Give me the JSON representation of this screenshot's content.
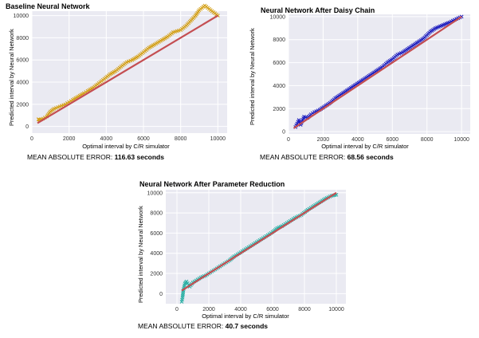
{
  "chart_data": [
    {
      "type": "scatter",
      "title": "Baseline Neural Network",
      "xlabel": "Optimal interval by C/R simulator",
      "ylabel": "Predicted interval by Neural Network",
      "xlim": [
        0,
        10500
      ],
      "ylim": [
        -600,
        10400
      ],
      "xticks": [
        0,
        2000,
        4000,
        6000,
        8000,
        10000
      ],
      "yticks": [
        0,
        2000,
        4000,
        6000,
        8000,
        10000
      ],
      "grid": true,
      "marker_color": "#d4a017",
      "line_color": "#c44e52",
      "identity_line": [
        [
          300,
          300
        ],
        [
          10000,
          10000
        ]
      ],
      "mae_label": "MEAN ABSOLUTE ERROR:",
      "mae_value": "116.63 seconds",
      "points": [
        [
          350,
          650
        ],
        [
          420,
          600
        ],
        [
          600,
          700
        ],
        [
          800,
          900
        ],
        [
          1000,
          1350
        ],
        [
          1200,
          1600
        ],
        [
          1500,
          1800
        ],
        [
          1800,
          2000
        ],
        [
          2000,
          2200
        ],
        [
          2200,
          2400
        ],
        [
          2500,
          2700
        ],
        [
          2800,
          3000
        ],
        [
          3000,
          3200
        ],
        [
          3300,
          3500
        ],
        [
          3600,
          3900
        ],
        [
          3900,
          4300
        ],
        [
          4200,
          4700
        ],
        [
          4500,
          5000
        ],
        [
          4800,
          5400
        ],
        [
          5100,
          5800
        ],
        [
          5400,
          6000
        ],
        [
          5700,
          6300
        ],
        [
          6000,
          6700
        ],
        [
          6300,
          7100
        ],
        [
          6600,
          7400
        ],
        [
          7000,
          7800
        ],
        [
          7300,
          8100
        ],
        [
          7600,
          8500
        ],
        [
          8000,
          8700
        ],
        [
          8300,
          9100
        ],
        [
          8800,
          10000
        ],
        [
          9000,
          10500
        ],
        [
          9300,
          10900
        ],
        [
          10000,
          10000
        ]
      ]
    },
    {
      "type": "scatter",
      "title": "Neural Network After Daisy Chain",
      "xlabel": "Optimal interval by C/R simulator",
      "ylabel": "Predicted interval by Neural Network",
      "xlim": [
        0,
        10500
      ],
      "ylim": [
        -200,
        10200
      ],
      "xticks": [
        0,
        2000,
        4000,
        6000,
        8000,
        10000
      ],
      "yticks": [
        0,
        2000,
        4000,
        6000,
        8000,
        10000
      ],
      "grid": true,
      "marker_color": "#1f1fbf",
      "line_color": "#c44e52",
      "identity_line": [
        [
          300,
          300
        ],
        [
          10000,
          10000
        ]
      ],
      "mae_label": "MEAN ABSOLUTE ERROR:",
      "mae_value": "68.56 seconds",
      "points": [
        [
          400,
          400
        ],
        [
          500,
          700
        ],
        [
          600,
          1000
        ],
        [
          700,
          600
        ],
        [
          900,
          1300
        ],
        [
          1100,
          1200
        ],
        [
          1300,
          1500
        ],
        [
          1500,
          1700
        ],
        [
          1800,
          1900
        ],
        [
          2100,
          2200
        ],
        [
          2400,
          2500
        ],
        [
          2700,
          2900
        ],
        [
          3000,
          3200
        ],
        [
          3300,
          3500
        ],
        [
          3600,
          3800
        ],
        [
          3900,
          4100
        ],
        [
          4200,
          4400
        ],
        [
          4500,
          4700
        ],
        [
          4800,
          5000
        ],
        [
          5100,
          5300
        ],
        [
          5400,
          5600
        ],
        [
          5700,
          6000
        ],
        [
          6000,
          6300
        ],
        [
          6300,
          6700
        ],
        [
          6600,
          6900
        ],
        [
          6900,
          7200
        ],
        [
          7200,
          7500
        ],
        [
          7500,
          7800
        ],
        [
          7800,
          8100
        ],
        [
          8200,
          8700
        ],
        [
          8500,
          9000
        ],
        [
          9300,
          9500
        ],
        [
          9700,
          9800
        ],
        [
          10000,
          10000
        ]
      ]
    },
    {
      "type": "scatter",
      "title": "Neural Network After Parameter Reduction",
      "xlabel": "Optimal interval by C/R simulator",
      "ylabel": "Predicted interval by Neural Network",
      "xlim": [
        -700,
        10600
      ],
      "ylim": [
        -1000,
        10300
      ],
      "xticks": [
        0,
        2000,
        4000,
        6000,
        8000,
        10000
      ],
      "yticks": [
        0,
        2000,
        4000,
        6000,
        8000,
        10000
      ],
      "grid": true,
      "marker_color": "#2ab0a5",
      "line_color": "#c44e52",
      "identity_line": [
        [
          300,
          300
        ],
        [
          10000,
          10000
        ]
      ],
      "mae_label": "MEAN ABSOLUTE ERROR:",
      "mae_value": "40.7 seconds",
      "points": [
        [
          300,
          -800
        ],
        [
          350,
          -400
        ],
        [
          400,
          300
        ],
        [
          500,
          1000
        ],
        [
          600,
          1200
        ],
        [
          800,
          700
        ],
        [
          1000,
          1100
        ],
        [
          1200,
          1300
        ],
        [
          1500,
          1600
        ],
        [
          1800,
          1800
        ],
        [
          2100,
          2100
        ],
        [
          2400,
          2400
        ],
        [
          2700,
          2700
        ],
        [
          3000,
          3000
        ],
        [
          3300,
          3300
        ],
        [
          3600,
          3700
        ],
        [
          3900,
          4000
        ],
        [
          4200,
          4300
        ],
        [
          4500,
          4600
        ],
        [
          4800,
          4900
        ],
        [
          5100,
          5200
        ],
        [
          5400,
          5500
        ],
        [
          5700,
          5800
        ],
        [
          6000,
          6100
        ],
        [
          6300,
          6500
        ],
        [
          6600,
          6700
        ],
        [
          7000,
          7100
        ],
        [
          7400,
          7500
        ],
        [
          7800,
          7800
        ],
        [
          8200,
          8300
        ],
        [
          8500,
          8600
        ],
        [
          9300,
          9400
        ],
        [
          9700,
          9700
        ],
        [
          10000,
          9800
        ]
      ]
    }
  ]
}
